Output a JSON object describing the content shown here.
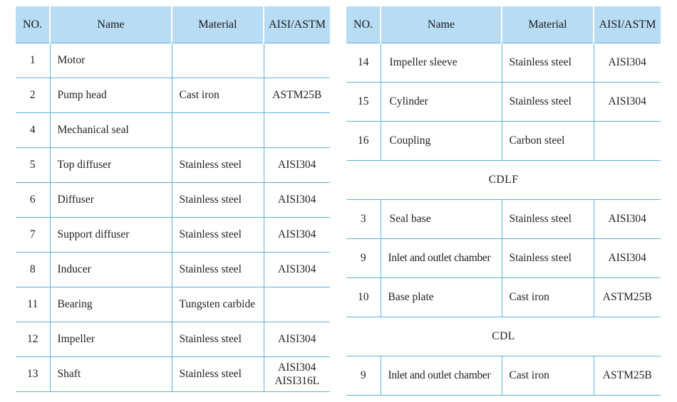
{
  "headers": {
    "no": "NO.",
    "name": "Name",
    "material": "Material",
    "aisi": "AISI/ASTM"
  },
  "left_rows": [
    {
      "no": "1",
      "name": "Motor",
      "material": "",
      "aisi": ""
    },
    {
      "no": "2",
      "name": "Pump head",
      "material": "Cast iron",
      "aisi": "ASTM25B"
    },
    {
      "no": "4",
      "name": "Mechanical seal",
      "material": "",
      "aisi": ""
    },
    {
      "no": "5",
      "name": "Top diffuser",
      "material": "Stainless steel",
      "aisi": "AISI304"
    },
    {
      "no": "6",
      "name": "Diffuser",
      "material": "Stainless steel",
      "aisi": "AISI304"
    },
    {
      "no": "7",
      "name": "Support diffuser",
      "material": "Stainless steel",
      "aisi": "AISI304"
    },
    {
      "no": "8",
      "name": "Inducer",
      "material": "Stainless steel",
      "aisi": "AISI304"
    },
    {
      "no": "11",
      "name": "Bearing",
      "material": "Tungsten carbide",
      "aisi": ""
    },
    {
      "no": "12",
      "name": "Impeller",
      "material": "Stainless steel",
      "aisi": "AISI304"
    },
    {
      "no": "13",
      "name": "Shaft",
      "material": "Stainless steel",
      "aisi": "AISI304",
      "aisi2": "AISI316L"
    }
  ],
  "right_rows": [
    {
      "no": "14",
      "name": "Impeller sleeve",
      "material": "Stainless steel",
      "aisi": "AISI304"
    },
    {
      "no": "15",
      "name": "Cylinder",
      "material": "Stainless steel",
      "aisi": "AISI304"
    },
    {
      "no": "16",
      "name": "Coupling",
      "material": "Carbon steel",
      "aisi": ""
    },
    {
      "section": "CDLF"
    },
    {
      "no": "3",
      "name": "Seal base",
      "material": "Stainless steel",
      "aisi": "AISI304"
    },
    {
      "no": "9",
      "name": "Inlet and outlet chamber",
      "material": "Stainless steel",
      "aisi": "AISI304"
    },
    {
      "no": "10",
      "name": "Base plate",
      "material": "Cast iron",
      "aisi": "ASTM25B"
    },
    {
      "section": "CDL"
    },
    {
      "no": "9",
      "name": "Inlet and outlet chamber",
      "material": "Cast iron",
      "aisi": "ASTM25B"
    }
  ]
}
